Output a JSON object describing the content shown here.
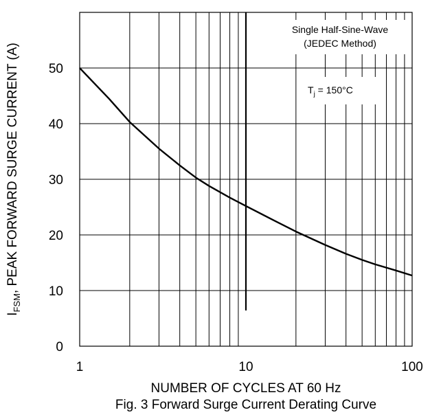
{
  "chart_data": {
    "type": "line",
    "title": "Fig. 3  Forward Surge Current Derating Curve",
    "xlabel": "NUMBER OF CYCLES AT 60 Hz",
    "ylabel": {
      "symbol": "I",
      "subscript": "FSM",
      "text": ", PEAK FORWARD SURGE CURRENT (A)"
    },
    "x_scale": "log",
    "xlim": [
      1,
      100
    ],
    "ylim": [
      0,
      60
    ],
    "x_ticks": [
      "1",
      "10",
      "100"
    ],
    "y_ticks": [
      "0",
      "10",
      "20",
      "30",
      "40",
      "50"
    ],
    "grid": true,
    "annotations": {
      "method_line1": "Single Half-Sine-Wave",
      "method_line2": "(JEDEC Method)",
      "tj_symbol": "T",
      "tj_subscript": "j",
      "tj_value": " = 150°C"
    },
    "series": [
      {
        "x": [
          1,
          1.5,
          2,
          3,
          4,
          5,
          6,
          8,
          10,
          15,
          20,
          30,
          40,
          50,
          60,
          80,
          100
        ],
        "y": [
          50,
          44.5,
          40.3,
          35.5,
          32.5,
          30.3,
          28.8,
          26.7,
          25.2,
          22.5,
          20.6,
          18.2,
          16.6,
          15.5,
          14.7,
          13.6,
          12.7
        ]
      }
    ]
  }
}
